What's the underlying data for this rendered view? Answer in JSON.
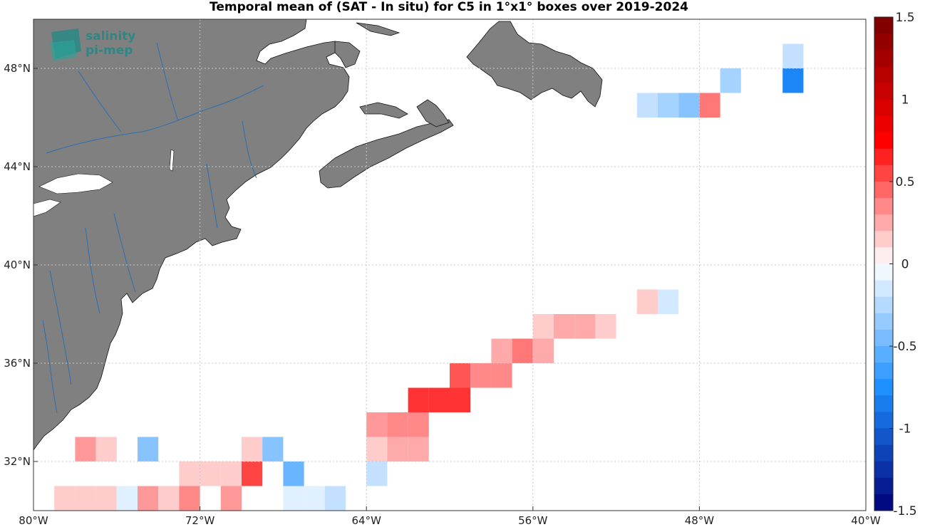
{
  "chart_data": {
    "type": "heatmap",
    "title": "Temporal mean of (SAT - In situ) for C5 in 1°x1° boxes over 2019-2024",
    "xlim": [
      -80,
      -40
    ],
    "ylim": [
      30,
      50
    ],
    "x_ticks": [
      {
        "value": -80,
        "label": "80°W"
      },
      {
        "value": -72,
        "label": "72°W"
      },
      {
        "value": -64,
        "label": "64°W"
      },
      {
        "value": -56,
        "label": "56°W"
      },
      {
        "value": -48,
        "label": "48°W"
      },
      {
        "value": -40,
        "label": "40°W"
      }
    ],
    "y_ticks": [
      {
        "value": 32,
        "label": "32°N"
      },
      {
        "value": 36,
        "label": "36°N"
      },
      {
        "value": 40,
        "label": "40°N"
      },
      {
        "value": 44,
        "label": "44°N"
      },
      {
        "value": 48,
        "label": "48°N"
      }
    ],
    "grid": true,
    "colorbar": {
      "range": [
        -1.5,
        1.5
      ],
      "ticks": [
        {
          "value": 1.5,
          "label": "1.5"
        },
        {
          "value": 1,
          "label": "1"
        },
        {
          "value": 0.5,
          "label": "0.5"
        },
        {
          "value": 0,
          "label": "0"
        },
        {
          "value": -0.5,
          "label": "-0.5"
        },
        {
          "value": -1,
          "label": "-1"
        },
        {
          "value": -1.5,
          "label": "-1.5"
        }
      ],
      "colormap": "blue-white-red"
    },
    "cells": [
      {
        "lon": -50.5,
        "lat": 46.5,
        "value": -0.2
      },
      {
        "lon": -49.5,
        "lat": 46.5,
        "value": -0.3
      },
      {
        "lon": -48.5,
        "lat": 46.5,
        "value": -0.4
      },
      {
        "lon": -47.5,
        "lat": 46.5,
        "value": 0.4
      },
      {
        "lon": -46.5,
        "lat": 47.5,
        "value": -0.3
      },
      {
        "lon": -43.5,
        "lat": 48.5,
        "value": -0.2
      },
      {
        "lon": -43.5,
        "lat": 47.5,
        "value": -0.8
      },
      {
        "lon": -50.5,
        "lat": 38.5,
        "value": 0.15
      },
      {
        "lon": -49.5,
        "lat": 38.5,
        "value": -0.15
      },
      {
        "lon": -55.5,
        "lat": 37.5,
        "value": 0.15
      },
      {
        "lon": -54.5,
        "lat": 37.5,
        "value": 0.25
      },
      {
        "lon": -53.5,
        "lat": 37.5,
        "value": 0.25
      },
      {
        "lon": -52.5,
        "lat": 37.5,
        "value": 0.15
      },
      {
        "lon": -57.5,
        "lat": 36.5,
        "value": 0.25
      },
      {
        "lon": -56.5,
        "lat": 36.5,
        "value": 0.4
      },
      {
        "lon": -55.5,
        "lat": 36.5,
        "value": 0.25
      },
      {
        "lon": -59.5,
        "lat": 35.5,
        "value": 0.5
      },
      {
        "lon": -58.5,
        "lat": 35.5,
        "value": 0.35
      },
      {
        "lon": -57.5,
        "lat": 35.5,
        "value": 0.35
      },
      {
        "lon": -61.5,
        "lat": 34.5,
        "value": 0.6
      },
      {
        "lon": -60.5,
        "lat": 34.5,
        "value": 0.6
      },
      {
        "lon": -59.5,
        "lat": 34.5,
        "value": 0.6
      },
      {
        "lon": -63.5,
        "lat": 33.5,
        "value": 0.3
      },
      {
        "lon": -62.5,
        "lat": 33.5,
        "value": 0.35
      },
      {
        "lon": -61.5,
        "lat": 33.5,
        "value": 0.35
      },
      {
        "lon": -63.5,
        "lat": 32.5,
        "value": 0.15
      },
      {
        "lon": -62.5,
        "lat": 32.5,
        "value": 0.25
      },
      {
        "lon": -61.5,
        "lat": 32.5,
        "value": 0.25
      },
      {
        "lon": -63.5,
        "lat": 31.5,
        "value": -0.2
      },
      {
        "lon": -77.5,
        "lat": 32.5,
        "value": 0.3
      },
      {
        "lon": -76.5,
        "lat": 32.5,
        "value": 0.15
      },
      {
        "lon": -74.5,
        "lat": 32.5,
        "value": -0.4
      },
      {
        "lon": -69.5,
        "lat": 32.5,
        "value": 0.15
      },
      {
        "lon": -68.5,
        "lat": 32.5,
        "value": -0.4
      },
      {
        "lon": -72.5,
        "lat": 31.5,
        "value": 0.15
      },
      {
        "lon": -71.5,
        "lat": 31.5,
        "value": 0.15
      },
      {
        "lon": -70.5,
        "lat": 31.5,
        "value": 0.15
      },
      {
        "lon": -69.5,
        "lat": 31.5,
        "value": 0.55
      },
      {
        "lon": -67.5,
        "lat": 31.5,
        "value": -0.5
      },
      {
        "lon": -78.5,
        "lat": 30.5,
        "value": 0.15
      },
      {
        "lon": -77.5,
        "lat": 30.5,
        "value": 0.15
      },
      {
        "lon": -76.5,
        "lat": 30.5,
        "value": 0.15
      },
      {
        "lon": -75.5,
        "lat": 30.5,
        "value": -0.1
      },
      {
        "lon": -74.5,
        "lat": 30.5,
        "value": 0.3
      },
      {
        "lon": -73.5,
        "lat": 30.5,
        "value": 0.15
      },
      {
        "lon": -72.5,
        "lat": 30.5,
        "value": 0.35
      },
      {
        "lon": -70.5,
        "lat": 30.5,
        "value": 0.3
      },
      {
        "lon": -67.5,
        "lat": 30.5,
        "value": -0.1
      },
      {
        "lon": -66.5,
        "lat": 30.5,
        "value": -0.1
      },
      {
        "lon": -65.5,
        "lat": 30.5,
        "value": -0.2
      }
    ]
  },
  "logo": {
    "line1": "salinity",
    "line2": "pi-mep"
  },
  "colors": {
    "land": "#808080",
    "rivers": "#2a6fb0",
    "grid": "#c8c8c8"
  }
}
